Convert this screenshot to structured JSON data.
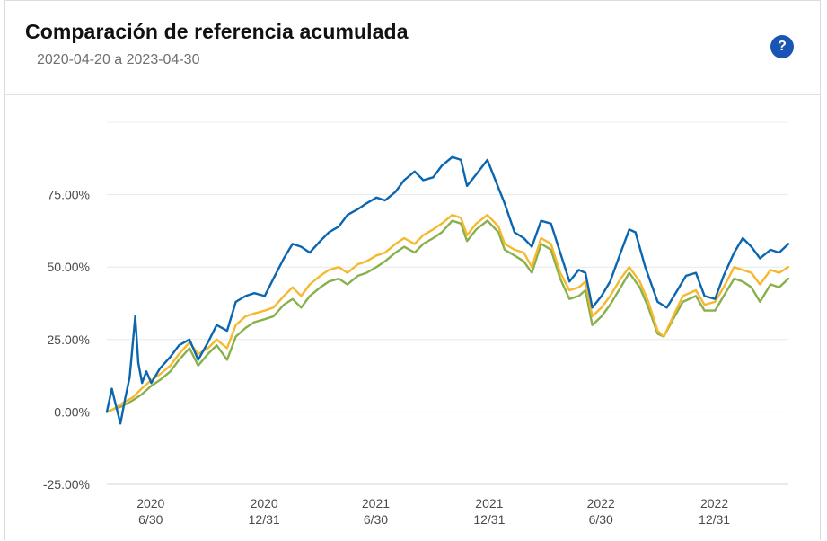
{
  "header": {
    "title": "Comparación de referencia acumulada",
    "date_range": "2020-04-20 a 2023-04-30",
    "help_glyph": "?"
  },
  "chart_data": {
    "type": "line",
    "title": "Comparación de referencia acumulada",
    "subtitle": "2020-04-20 a 2023-04-30",
    "ylim": [
      -25,
      100
    ],
    "yticks": [
      -25,
      0,
      25,
      50,
      75
    ],
    "ytick_labels": [
      "-25.00%",
      "0.00%",
      "25.00%",
      "50.00%",
      "75.00%"
    ],
    "xlim": [
      "2020-04-20",
      "2023-04-30"
    ],
    "xticks": [
      "2020-06-30",
      "2020-12-31",
      "2021-06-30",
      "2021-12-31",
      "2022-06-30",
      "2022-12-31"
    ],
    "xtick_labels": [
      [
        "2020",
        "6/30"
      ],
      [
        "2020",
        "12/31"
      ],
      [
        "2021",
        "6/30"
      ],
      [
        "2021",
        "12/31"
      ],
      [
        "2022",
        "6/30"
      ],
      [
        "2022",
        "12/31"
      ]
    ],
    "grid": true,
    "series": [
      {
        "color": "#0b66b0",
        "points": [
          [
            "2020-04-20",
            0
          ],
          [
            "2020-04-28",
            8
          ],
          [
            "2020-05-05",
            2
          ],
          [
            "2020-05-12",
            -4
          ],
          [
            "2020-05-20",
            5
          ],
          [
            "2020-05-27",
            12
          ],
          [
            "2020-06-05",
            33
          ],
          [
            "2020-06-10",
            17
          ],
          [
            "2020-06-16",
            10
          ],
          [
            "2020-06-23",
            14
          ],
          [
            "2020-07-01",
            10
          ],
          [
            "2020-07-15",
            15
          ],
          [
            "2020-08-01",
            19
          ],
          [
            "2020-08-15",
            23
          ],
          [
            "2020-09-01",
            25
          ],
          [
            "2020-09-15",
            18
          ],
          [
            "2020-10-01",
            24
          ],
          [
            "2020-10-15",
            30
          ],
          [
            "2020-11-01",
            28
          ],
          [
            "2020-11-15",
            38
          ],
          [
            "2020-12-01",
            40
          ],
          [
            "2020-12-15",
            41
          ],
          [
            "2021-01-01",
            40
          ],
          [
            "2021-01-15",
            46
          ],
          [
            "2021-02-01",
            53
          ],
          [
            "2021-02-15",
            58
          ],
          [
            "2021-03-01",
            57
          ],
          [
            "2021-03-15",
            55
          ],
          [
            "2021-04-01",
            59
          ],
          [
            "2021-04-15",
            62
          ],
          [
            "2021-05-01",
            64
          ],
          [
            "2021-05-15",
            68
          ],
          [
            "2021-06-01",
            70
          ],
          [
            "2021-06-15",
            72
          ],
          [
            "2021-07-01",
            74
          ],
          [
            "2021-07-15",
            73
          ],
          [
            "2021-08-01",
            76
          ],
          [
            "2021-08-15",
            80
          ],
          [
            "2021-09-01",
            83
          ],
          [
            "2021-09-15",
            80
          ],
          [
            "2021-10-01",
            81
          ],
          [
            "2021-10-15",
            85
          ],
          [
            "2021-11-01",
            88
          ],
          [
            "2021-11-15",
            87
          ],
          [
            "2021-11-25",
            78
          ],
          [
            "2021-12-10",
            82
          ],
          [
            "2021-12-28",
            87
          ],
          [
            "2022-01-10",
            80
          ],
          [
            "2022-01-25",
            72
          ],
          [
            "2022-02-10",
            62
          ],
          [
            "2022-02-25",
            60
          ],
          [
            "2022-03-10",
            57
          ],
          [
            "2022-03-25",
            66
          ],
          [
            "2022-04-10",
            65
          ],
          [
            "2022-04-25",
            55
          ],
          [
            "2022-05-10",
            45
          ],
          [
            "2022-05-25",
            49
          ],
          [
            "2022-06-05",
            48
          ],
          [
            "2022-06-16",
            36
          ],
          [
            "2022-07-01",
            40
          ],
          [
            "2022-07-15",
            45
          ],
          [
            "2022-08-01",
            55
          ],
          [
            "2022-08-15",
            63
          ],
          [
            "2022-08-25",
            62
          ],
          [
            "2022-09-10",
            50
          ],
          [
            "2022-09-30",
            38
          ],
          [
            "2022-10-15",
            36
          ],
          [
            "2022-11-01",
            42
          ],
          [
            "2022-11-15",
            47
          ],
          [
            "2022-12-01",
            48
          ],
          [
            "2022-12-15",
            40
          ],
          [
            "2023-01-01",
            39
          ],
          [
            "2023-01-15",
            47
          ],
          [
            "2023-02-01",
            55
          ],
          [
            "2023-02-15",
            60
          ],
          [
            "2023-03-01",
            57
          ],
          [
            "2023-03-15",
            53
          ],
          [
            "2023-04-01",
            56
          ],
          [
            "2023-04-15",
            55
          ],
          [
            "2023-04-30",
            58
          ]
        ]
      },
      {
        "color": "#f6b82d",
        "points": [
          [
            "2020-04-20",
            0
          ],
          [
            "2020-05-01",
            1
          ],
          [
            "2020-05-15",
            3
          ],
          [
            "2020-06-01",
            5
          ],
          [
            "2020-06-15",
            8
          ],
          [
            "2020-07-01",
            11
          ],
          [
            "2020-07-15",
            13
          ],
          [
            "2020-08-01",
            16
          ],
          [
            "2020-08-15",
            20
          ],
          [
            "2020-09-01",
            24
          ],
          [
            "2020-09-15",
            20
          ],
          [
            "2020-10-01",
            22
          ],
          [
            "2020-10-15",
            25
          ],
          [
            "2020-11-01",
            22
          ],
          [
            "2020-11-15",
            30
          ],
          [
            "2020-12-01",
            33
          ],
          [
            "2020-12-15",
            34
          ],
          [
            "2021-01-01",
            35
          ],
          [
            "2021-01-15",
            36
          ],
          [
            "2021-02-01",
            40
          ],
          [
            "2021-02-15",
            43
          ],
          [
            "2021-03-01",
            40
          ],
          [
            "2021-03-15",
            44
          ],
          [
            "2021-04-01",
            47
          ],
          [
            "2021-04-15",
            49
          ],
          [
            "2021-05-01",
            50
          ],
          [
            "2021-05-15",
            48
          ],
          [
            "2021-06-01",
            51
          ],
          [
            "2021-06-15",
            52
          ],
          [
            "2021-07-01",
            54
          ],
          [
            "2021-07-15",
            55
          ],
          [
            "2021-08-01",
            58
          ],
          [
            "2021-08-15",
            60
          ],
          [
            "2021-09-01",
            58
          ],
          [
            "2021-09-15",
            61
          ],
          [
            "2021-10-01",
            63
          ],
          [
            "2021-10-15",
            65
          ],
          [
            "2021-11-01",
            68
          ],
          [
            "2021-11-15",
            67
          ],
          [
            "2021-11-25",
            61
          ],
          [
            "2021-12-10",
            65
          ],
          [
            "2021-12-28",
            68
          ],
          [
            "2022-01-15",
            64
          ],
          [
            "2022-01-25",
            58
          ],
          [
            "2022-02-10",
            56
          ],
          [
            "2022-02-25",
            55
          ],
          [
            "2022-03-10",
            50
          ],
          [
            "2022-03-25",
            60
          ],
          [
            "2022-04-10",
            58
          ],
          [
            "2022-04-25",
            48
          ],
          [
            "2022-05-10",
            42
          ],
          [
            "2022-05-25",
            43
          ],
          [
            "2022-06-05",
            45
          ],
          [
            "2022-06-16",
            33
          ],
          [
            "2022-07-01",
            36
          ],
          [
            "2022-07-15",
            40
          ],
          [
            "2022-08-01",
            46
          ],
          [
            "2022-08-15",
            50
          ],
          [
            "2022-09-01",
            45
          ],
          [
            "2022-09-15",
            38
          ],
          [
            "2022-09-30",
            28
          ],
          [
            "2022-10-10",
            26
          ],
          [
            "2022-10-25",
            33
          ],
          [
            "2022-11-10",
            40
          ],
          [
            "2022-12-01",
            42
          ],
          [
            "2022-12-15",
            37
          ],
          [
            "2023-01-01",
            38
          ],
          [
            "2023-01-15",
            43
          ],
          [
            "2023-02-01",
            50
          ],
          [
            "2023-02-15",
            49
          ],
          [
            "2023-03-01",
            48
          ],
          [
            "2023-03-15",
            44
          ],
          [
            "2023-04-01",
            49
          ],
          [
            "2023-04-15",
            48
          ],
          [
            "2023-04-30",
            50
          ]
        ]
      },
      {
        "color": "#88b04b",
        "points": [
          [
            "2020-04-20",
            0
          ],
          [
            "2020-05-01",
            1
          ],
          [
            "2020-05-15",
            2
          ],
          [
            "2020-06-01",
            4
          ],
          [
            "2020-06-15",
            6
          ],
          [
            "2020-07-01",
            9
          ],
          [
            "2020-07-15",
            11
          ],
          [
            "2020-08-01",
            14
          ],
          [
            "2020-08-15",
            18
          ],
          [
            "2020-09-01",
            22
          ],
          [
            "2020-09-15",
            16
          ],
          [
            "2020-10-01",
            20
          ],
          [
            "2020-10-15",
            23
          ],
          [
            "2020-11-01",
            18
          ],
          [
            "2020-11-15",
            26
          ],
          [
            "2020-12-01",
            29
          ],
          [
            "2020-12-15",
            31
          ],
          [
            "2021-01-01",
            32
          ],
          [
            "2021-01-15",
            33
          ],
          [
            "2021-02-01",
            37
          ],
          [
            "2021-02-15",
            39
          ],
          [
            "2021-03-01",
            36
          ],
          [
            "2021-03-15",
            40
          ],
          [
            "2021-04-01",
            43
          ],
          [
            "2021-04-15",
            45
          ],
          [
            "2021-05-01",
            46
          ],
          [
            "2021-05-15",
            44
          ],
          [
            "2021-06-01",
            47
          ],
          [
            "2021-06-15",
            48
          ],
          [
            "2021-07-01",
            50
          ],
          [
            "2021-07-15",
            52
          ],
          [
            "2021-08-01",
            55
          ],
          [
            "2021-08-15",
            57
          ],
          [
            "2021-09-01",
            55
          ],
          [
            "2021-09-15",
            58
          ],
          [
            "2021-10-01",
            60
          ],
          [
            "2021-10-15",
            62
          ],
          [
            "2021-11-01",
            66
          ],
          [
            "2021-11-15",
            65
          ],
          [
            "2021-11-25",
            59
          ],
          [
            "2021-12-10",
            63
          ],
          [
            "2021-12-28",
            66
          ],
          [
            "2022-01-15",
            62
          ],
          [
            "2022-01-25",
            56
          ],
          [
            "2022-02-10",
            54
          ],
          [
            "2022-02-25",
            52
          ],
          [
            "2022-03-10",
            48
          ],
          [
            "2022-03-25",
            58
          ],
          [
            "2022-04-10",
            56
          ],
          [
            "2022-04-25",
            46
          ],
          [
            "2022-05-10",
            39
          ],
          [
            "2022-05-25",
            40
          ],
          [
            "2022-06-05",
            42
          ],
          [
            "2022-06-16",
            30
          ],
          [
            "2022-07-01",
            33
          ],
          [
            "2022-07-15",
            37
          ],
          [
            "2022-08-01",
            43
          ],
          [
            "2022-08-15",
            48
          ],
          [
            "2022-09-01",
            43
          ],
          [
            "2022-09-15",
            36
          ],
          [
            "2022-09-30",
            27
          ],
          [
            "2022-10-10",
            26
          ],
          [
            "2022-10-25",
            32
          ],
          [
            "2022-11-10",
            38
          ],
          [
            "2022-12-01",
            40
          ],
          [
            "2022-12-15",
            35
          ],
          [
            "2023-01-01",
            35
          ],
          [
            "2023-01-15",
            40
          ],
          [
            "2023-02-01",
            46
          ],
          [
            "2023-02-15",
            45
          ],
          [
            "2023-03-01",
            43
          ],
          [
            "2023-03-15",
            38
          ],
          [
            "2023-04-01",
            44
          ],
          [
            "2023-04-15",
            43
          ],
          [
            "2023-04-30",
            46
          ]
        ]
      }
    ]
  }
}
